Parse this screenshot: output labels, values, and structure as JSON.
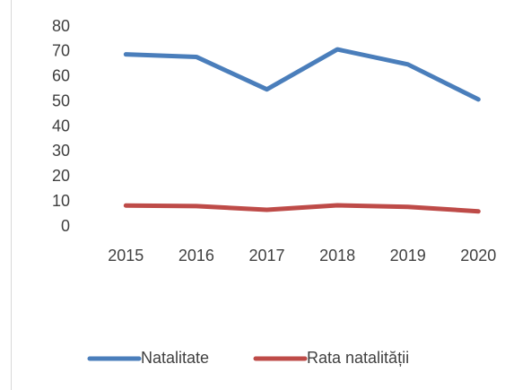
{
  "chart_data": {
    "type": "line",
    "categories": [
      "2015",
      "2016",
      "2017",
      "2018",
      "2019",
      "2020"
    ],
    "series": [
      {
        "name": "Natalitate",
        "color": "#4a7ebb",
        "values": [
          69,
          68,
          55,
          71,
          65,
          51
        ]
      },
      {
        "name": "Rata natalității",
        "color": "#be4b48",
        "values": [
          8.5,
          8.3,
          6.8,
          8.6,
          8.0,
          6.2
        ]
      }
    ],
    "ylim": [
      0,
      80
    ],
    "yticks": [
      0,
      10,
      20,
      30,
      40,
      50,
      60,
      70,
      80
    ],
    "legend": "bottom"
  }
}
